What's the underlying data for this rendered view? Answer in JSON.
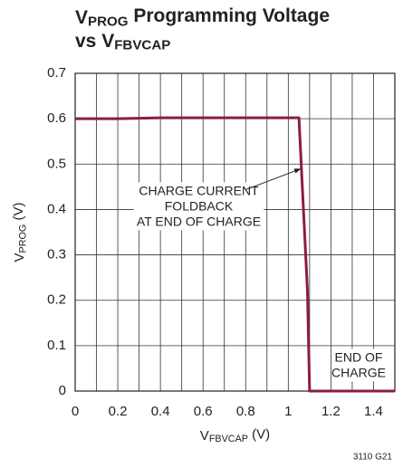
{
  "chart_data": {
    "type": "line",
    "title": [
      [
        "V",
        "PROG",
        " Programming Voltage"
      ],
      [
        "vs V",
        "FBVCAP"
      ]
    ],
    "xlabel": [
      "V",
      "FBVCAP",
      " (V)"
    ],
    "ylabel": [
      "V",
      "PROG",
      " (V)"
    ],
    "x": [
      0,
      0.2,
      0.4,
      1.05,
      1.09,
      1.1,
      1.5
    ],
    "series": [
      {
        "color": "#8c1d40",
        "values": [
          0.6,
          0.6,
          0.602,
          0.602,
          0.22,
          0,
          0
        ]
      }
    ],
    "xlim": [
      0,
      1.5
    ],
    "ylim": [
      0,
      0.7
    ],
    "xticks": [
      0,
      0.2,
      0.4,
      0.6,
      0.8,
      1,
      1.2,
      1.4
    ],
    "xminor": [
      0.1,
      0.3,
      0.5,
      0.7,
      0.9,
      1.1,
      1.3
    ],
    "yticks": [
      0,
      0.1,
      0.2,
      0.3,
      0.4,
      0.5,
      0.6,
      0.7
    ],
    "grid": true,
    "annotations": [
      {
        "lines": [
          "CHARGE CURRENT",
          "FOLDBACK",
          "AT END OF CHARGE"
        ],
        "x": 0.58,
        "y": 0.405,
        "arrow_to": [
          1.06,
          0.49
        ]
      },
      {
        "lines": [
          "END OF",
          "CHARGE"
        ],
        "x": 1.33,
        "y": 0.055
      }
    ],
    "footnote": "3110 G21"
  }
}
